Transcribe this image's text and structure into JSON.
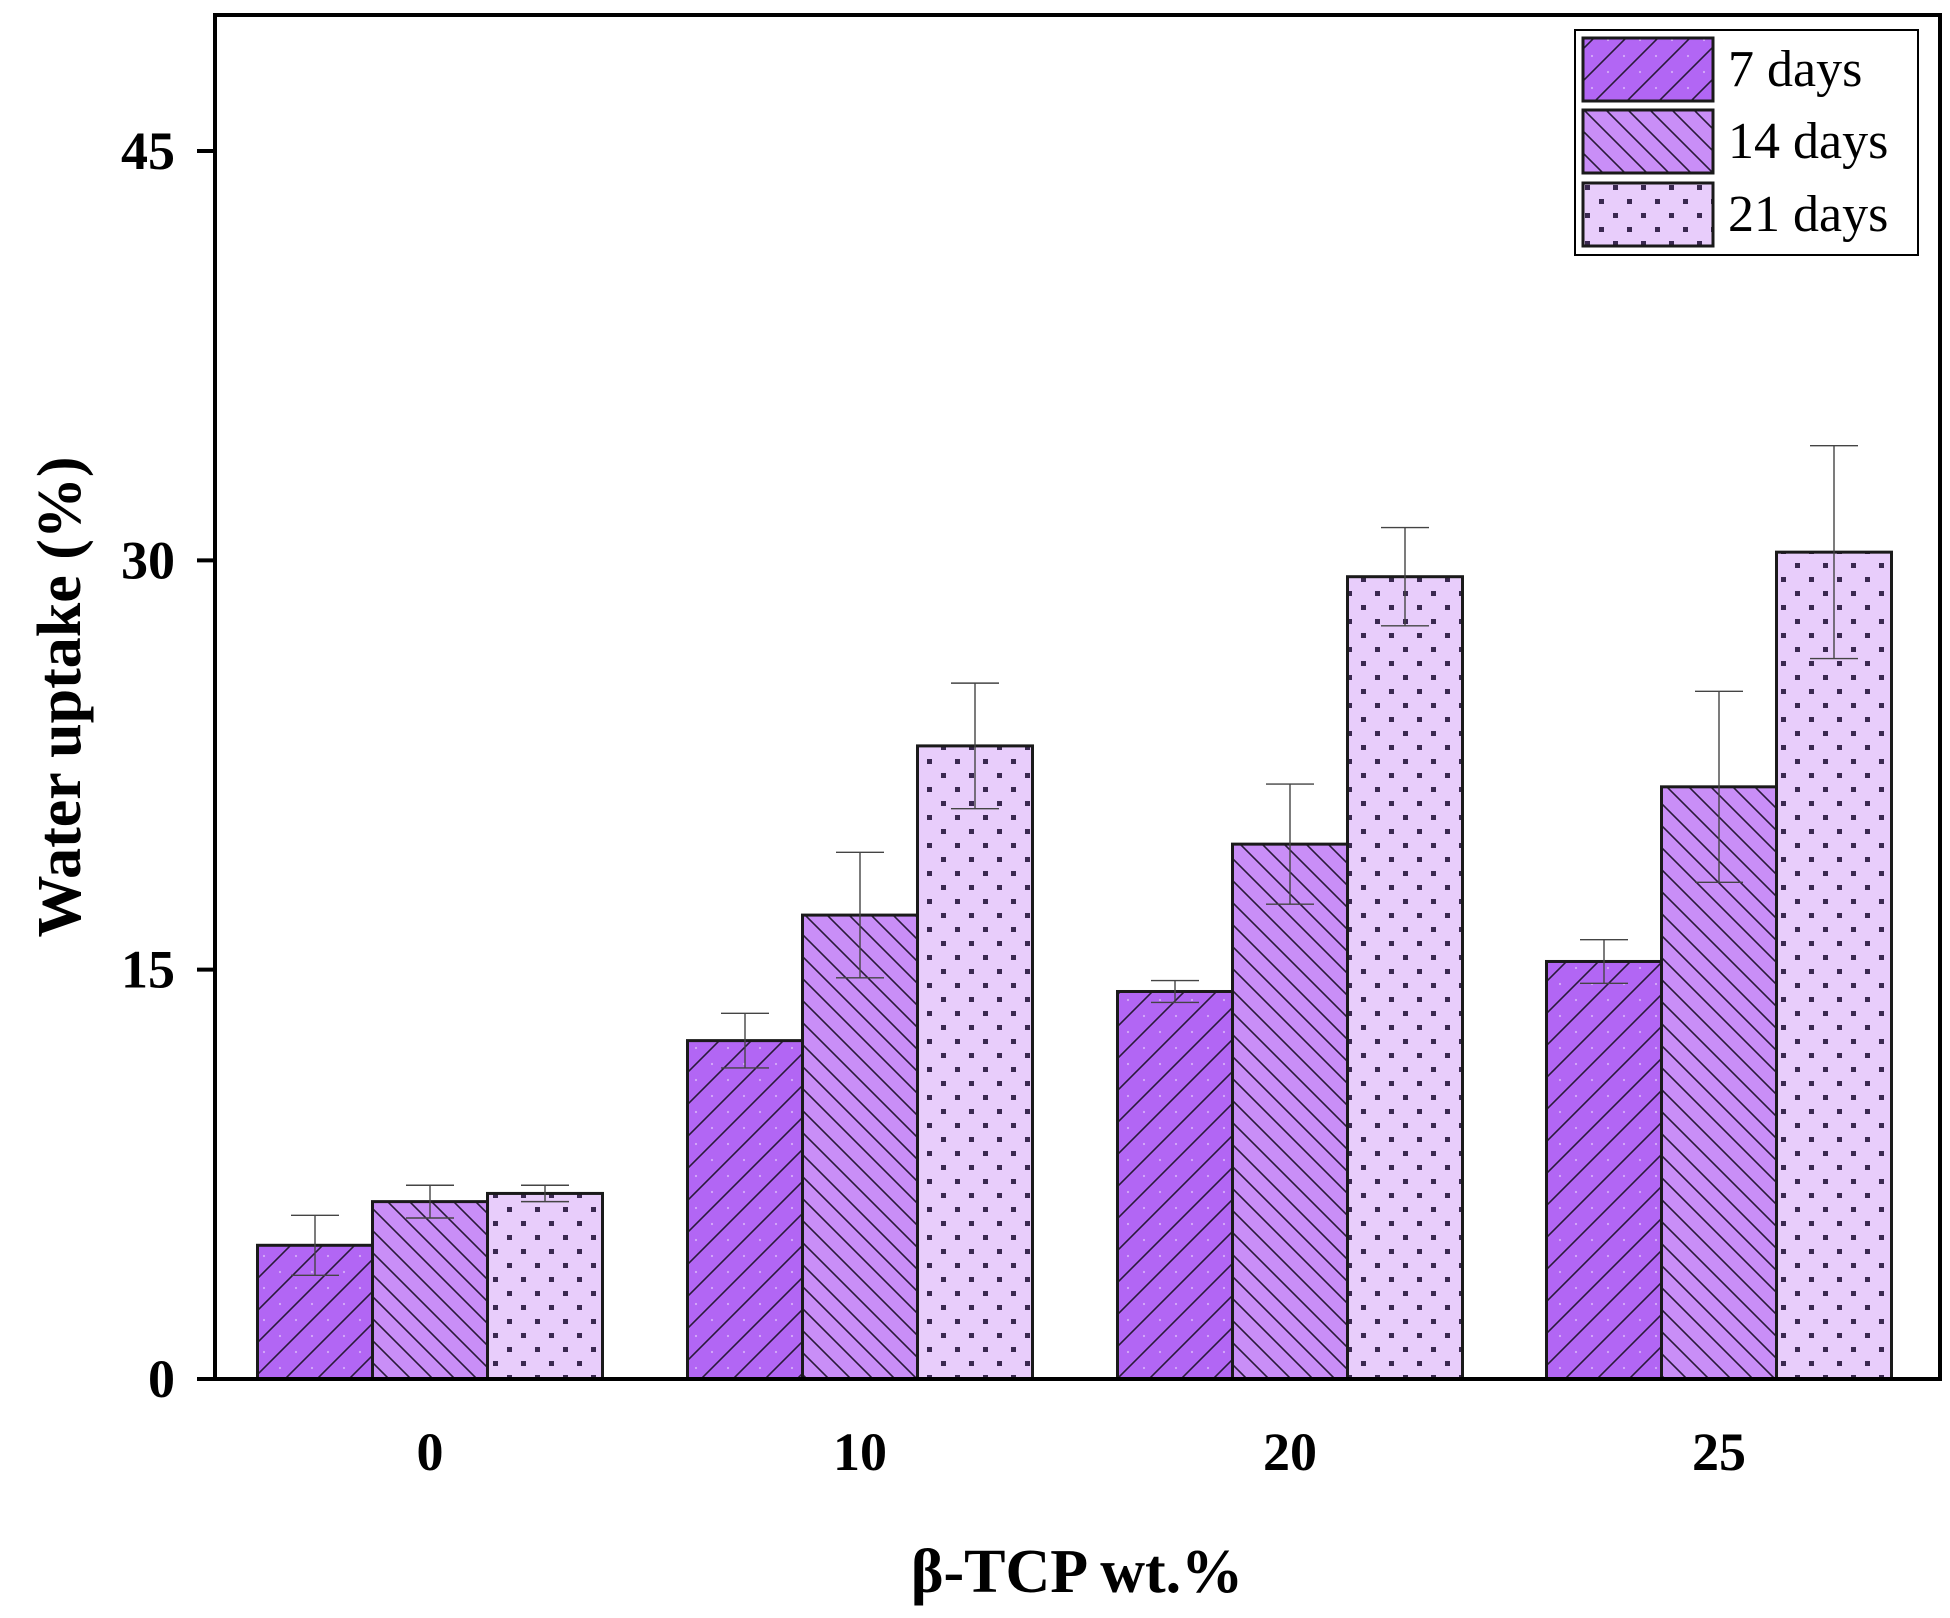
{
  "chart_data": {
    "type": "bar",
    "title": "",
    "xlabel": "β-TCP wt.%",
    "ylabel": "Water uptake (%)",
    "categories": [
      "0",
      "10",
      "20",
      "25"
    ],
    "ylim": [
      0,
      50
    ],
    "yticks": [
      0,
      15,
      30,
      45
    ],
    "grid": false,
    "legend_position": "top-right",
    "series": [
      {
        "name": "7 days",
        "pattern": "forward-hatch",
        "color": "#b266f4",
        "values": [
          4.9,
          12.4,
          14.2,
          15.3
        ],
        "errors": [
          1.1,
          1.0,
          0.4,
          0.8
        ]
      },
      {
        "name": "14 days",
        "pattern": "back-hatch",
        "color": "#c98ef7",
        "values": [
          6.5,
          17.0,
          19.6,
          21.7
        ],
        "errors": [
          0.6,
          2.3,
          2.2,
          3.5
        ]
      },
      {
        "name": "21 days",
        "pattern": "dots",
        "color": "#e8cdfb",
        "values": [
          6.8,
          23.2,
          29.4,
          30.3
        ],
        "errors": [
          0.3,
          2.3,
          1.8,
          3.9
        ]
      }
    ]
  }
}
